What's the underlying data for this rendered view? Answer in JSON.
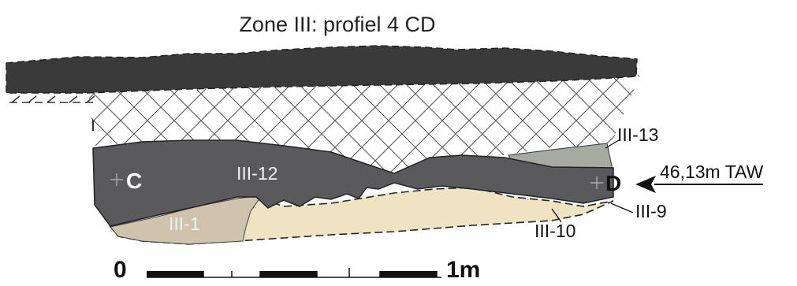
{
  "title": "Zone III: profiel 4 CD",
  "points": {
    "left": "C",
    "right": "D"
  },
  "layers": {
    "top": "III-12",
    "bottom_left": "III-1",
    "upper_right": "III-13",
    "lower_right": "III-10",
    "base_right": "III-9"
  },
  "elevation_label": "46,13m TAW",
  "scale": {
    "start": "0",
    "end": "1m"
  },
  "colors": {
    "dark_band": "#3a3a3a",
    "hatch": "#555555",
    "dark_gray": "#5a5a5c",
    "light_brown": "#cfc3ae",
    "beige": "#efe3c4",
    "greenish_gray": "#a7aaa0"
  }
}
